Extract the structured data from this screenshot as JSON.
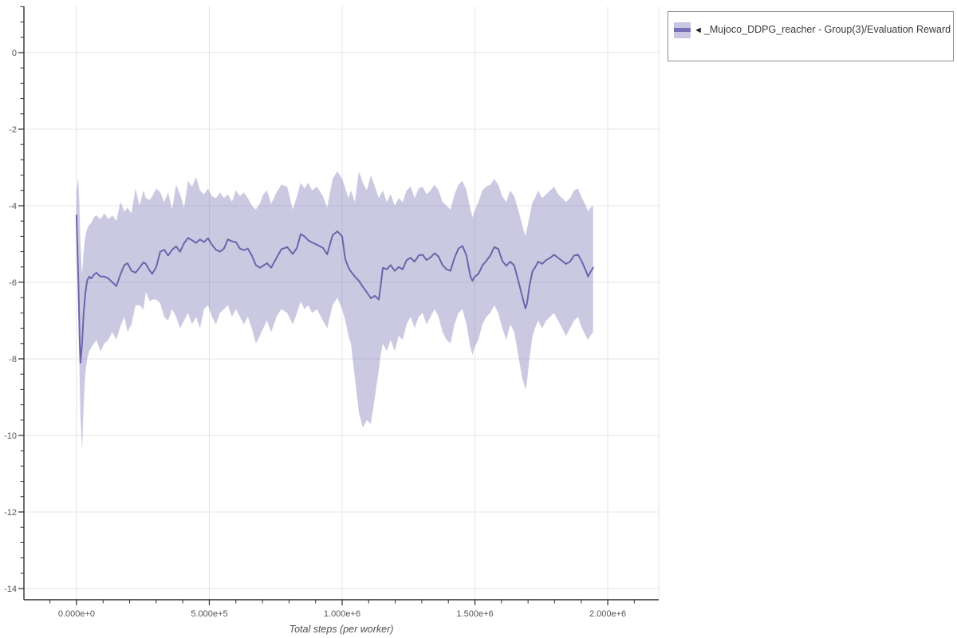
{
  "page": {
    "background": "#ffffff"
  },
  "legend": {
    "marker": "◄",
    "label": "_Mujoco_DDPG_reacher - Group(3)/Evaluation Reward",
    "border_color": "#8f8f8f",
    "text_color": "#3b3b3b",
    "swatch_band_color": "#c9c6e4",
    "swatch_line_color": "#7470b2",
    "position": "top-right"
  },
  "chart_data": {
    "type": "line",
    "title": "",
    "xlabel": "Total steps (per worker)",
    "ylabel": "",
    "grid": true,
    "legend_position": "top-right",
    "xlim": [
      -198000,
      2192000
    ],
    "ylim": [
      -14.292,
      1.208
    ],
    "x_tick_values": [
      0,
      500000,
      1000000,
      1500000,
      2000000
    ],
    "x_tick_labels": [
      "0.000e+0",
      "5.000e+5",
      "1.000e+6",
      "1.500e+6",
      "2.000e+6"
    ],
    "x_minor_step": 100000,
    "y_tick_values": [
      0,
      -2,
      -4,
      -6,
      -8,
      -10,
      -12,
      -14
    ],
    "y_tick_labels": [
      "0",
      "-2",
      "-4",
      "-6",
      "-8",
      "-10",
      "-12",
      "-14"
    ],
    "y_minor_step": 0.4,
    "colors": {
      "line": "#6a65ab",
      "band": "rgba(106,101,171,0.35)",
      "grid": "#e4e4e6",
      "spine": "#2f2f2f",
      "tick": "#2f2f2f",
      "tick_label": "#545454",
      "axis_title": "#4f4f4f"
    },
    "series": [
      {
        "name": "_Mujoco_DDPG_reacher - Group(3)/Evaluation Reward",
        "x": [
          0,
          7000,
          12000,
          15000,
          21000,
          27000,
          33000,
          40000,
          48000,
          55000,
          66000,
          75000,
          90000,
          105000,
          120000,
          135000,
          150000,
          165000,
          180000,
          192000,
          207000,
          222000,
          237000,
          252000,
          261000,
          276000,
          285000,
          300000,
          315000,
          330000,
          345000,
          360000,
          375000,
          390000,
          405000,
          420000,
          435000,
          450000,
          465000,
          480000,
          495000,
          510000,
          525000,
          540000,
          555000,
          570000,
          585000,
          600000,
          615000,
          630000,
          645000,
          660000,
          675000,
          690000,
          703000,
          717000,
          733000,
          753000,
          771000,
          793000,
          814000,
          830000,
          844000,
          858000,
          872000,
          887000,
          905000,
          928000,
          944000,
          964000,
          982000,
          1000000,
          1012000,
          1024000,
          1033000,
          1048000,
          1063000,
          1078000,
          1093000,
          1108000,
          1123000,
          1138000,
          1145000,
          1153000,
          1168000,
          1183000,
          1198000,
          1213000,
          1228000,
          1243000,
          1258000,
          1273000,
          1288000,
          1303000,
          1318000,
          1333000,
          1348000,
          1363000,
          1378000,
          1393000,
          1408000,
          1423000,
          1438000,
          1453000,
          1468000,
          1483000,
          1491000,
          1498000,
          1513000,
          1528000,
          1543000,
          1558000,
          1573000,
          1588000,
          1603000,
          1618000,
          1633000,
          1648000,
          1663000,
          1678000,
          1690000,
          1696000,
          1705000,
          1717000,
          1726000,
          1738000,
          1753000,
          1768000,
          1783000,
          1798000,
          1813000,
          1828000,
          1843000,
          1858000,
          1873000,
          1888000,
          1903000,
          1918000,
          1926000,
          1934000,
          1945000
        ],
        "mean": [
          -4.25,
          -6.0,
          -7.5,
          -8.1,
          -7.6,
          -6.8,
          -6.3,
          -5.95,
          -5.85,
          -5.9,
          -5.8,
          -5.75,
          -5.85,
          -5.85,
          -5.9,
          -6.0,
          -6.1,
          -5.8,
          -5.55,
          -5.5,
          -5.7,
          -5.75,
          -5.62,
          -5.48,
          -5.52,
          -5.7,
          -5.78,
          -5.6,
          -5.2,
          -5.15,
          -5.3,
          -5.15,
          -5.06,
          -5.2,
          -4.98,
          -4.84,
          -4.9,
          -4.97,
          -4.88,
          -4.95,
          -4.85,
          -5.02,
          -5.15,
          -5.2,
          -5.12,
          -4.88,
          -4.93,
          -4.95,
          -5.12,
          -5.16,
          -5.12,
          -5.3,
          -5.55,
          -5.62,
          -5.57,
          -5.5,
          -5.62,
          -5.36,
          -5.14,
          -5.08,
          -5.26,
          -5.1,
          -4.74,
          -4.8,
          -4.9,
          -4.96,
          -5.02,
          -5.1,
          -5.27,
          -4.77,
          -4.67,
          -4.8,
          -5.4,
          -5.62,
          -5.72,
          -5.85,
          -5.96,
          -6.12,
          -6.26,
          -6.42,
          -6.35,
          -6.45,
          -6.1,
          -5.62,
          -5.66,
          -5.55,
          -5.7,
          -5.6,
          -5.66,
          -5.42,
          -5.36,
          -5.46,
          -5.3,
          -5.28,
          -5.42,
          -5.35,
          -5.24,
          -5.33,
          -5.55,
          -5.66,
          -5.7,
          -5.36,
          -5.12,
          -5.05,
          -5.3,
          -5.85,
          -5.96,
          -5.86,
          -5.78,
          -5.56,
          -5.44,
          -5.3,
          -5.08,
          -5.13,
          -5.44,
          -5.57,
          -5.46,
          -5.56,
          -5.95,
          -6.36,
          -6.68,
          -6.56,
          -6.1,
          -5.7,
          -5.62,
          -5.46,
          -5.52,
          -5.42,
          -5.36,
          -5.28,
          -5.36,
          -5.44,
          -5.52,
          -5.46,
          -5.3,
          -5.28,
          -5.46,
          -5.7,
          -5.85,
          -5.74,
          -5.62
        ],
        "hi": [
          -3.6,
          -3.3,
          -4.2,
          -5.0,
          -5.8,
          -5.2,
          -4.8,
          -4.6,
          -4.5,
          -4.45,
          -4.3,
          -4.25,
          -4.35,
          -4.2,
          -4.35,
          -4.25,
          -4.4,
          -3.9,
          -4.15,
          -4.05,
          -4.2,
          -3.55,
          -4.0,
          -3.6,
          -3.8,
          -3.85,
          -3.75,
          -3.55,
          -3.65,
          -3.9,
          -3.65,
          -4.1,
          -3.45,
          -3.7,
          -4.05,
          -3.35,
          -3.5,
          -3.25,
          -3.6,
          -3.7,
          -3.55,
          -3.75,
          -3.8,
          -3.65,
          -3.8,
          -3.7,
          -3.9,
          -3.6,
          -3.75,
          -3.65,
          -3.8,
          -4.0,
          -4.1,
          -3.95,
          -3.7,
          -3.6,
          -3.95,
          -3.65,
          -3.45,
          -3.5,
          -4.1,
          -3.75,
          -3.4,
          -3.55,
          -3.4,
          -3.6,
          -3.5,
          -3.75,
          -4.05,
          -3.3,
          -3.1,
          -3.3,
          -3.55,
          -3.8,
          -3.6,
          -3.9,
          -3.1,
          -3.4,
          -3.6,
          -3.2,
          -3.5,
          -3.8,
          -3.7,
          -3.6,
          -3.9,
          -3.7,
          -4.0,
          -3.8,
          -3.9,
          -3.6,
          -3.5,
          -3.8,
          -3.55,
          -3.5,
          -3.7,
          -3.6,
          -3.45,
          -3.6,
          -3.9,
          -4.0,
          -4.1,
          -3.7,
          -3.45,
          -3.35,
          -3.6,
          -4.1,
          -4.3,
          -4.15,
          -3.9,
          -3.6,
          -3.5,
          -3.45,
          -3.3,
          -3.45,
          -3.75,
          -3.9,
          -3.6,
          -3.75,
          -4.1,
          -4.5,
          -4.8,
          -4.6,
          -4.3,
          -3.9,
          -3.8,
          -3.6,
          -3.8,
          -3.7,
          -3.6,
          -3.5,
          -3.7,
          -3.8,
          -3.9,
          -3.8,
          -3.6,
          -3.55,
          -3.8,
          -4.0,
          -4.15,
          -4.05,
          -4.0
        ],
        "lo": [
          -4.6,
          -6.8,
          -8.6,
          -9.5,
          -10.4,
          -9.2,
          -8.4,
          -8.0,
          -7.8,
          -7.7,
          -7.6,
          -7.5,
          -7.8,
          -7.6,
          -7.5,
          -7.3,
          -7.5,
          -7.15,
          -6.9,
          -7.3,
          -7.1,
          -6.6,
          -6.6,
          -6.7,
          -6.25,
          -6.5,
          -6.45,
          -6.45,
          -6.55,
          -6.9,
          -7.0,
          -6.7,
          -6.9,
          -7.2,
          -7.0,
          -6.8,
          -7.1,
          -6.9,
          -7.2,
          -6.7,
          -6.6,
          -6.9,
          -7.1,
          -6.8,
          -6.7,
          -6.6,
          -6.9,
          -6.7,
          -6.9,
          -7.1,
          -6.9,
          -7.2,
          -7.6,
          -7.4,
          -7.2,
          -7.0,
          -7.3,
          -6.9,
          -6.7,
          -6.8,
          -7.1,
          -6.8,
          -6.5,
          -6.7,
          -6.6,
          -6.8,
          -6.7,
          -7.0,
          -7.2,
          -6.6,
          -6.4,
          -6.7,
          -7.0,
          -7.4,
          -7.6,
          -8.5,
          -9.4,
          -9.8,
          -9.6,
          -9.7,
          -9.0,
          -8.3,
          -7.9,
          -7.6,
          -7.8,
          -7.5,
          -7.8,
          -7.4,
          -7.5,
          -7.1,
          -6.9,
          -7.2,
          -6.9,
          -6.8,
          -7.1,
          -6.9,
          -6.7,
          -6.9,
          -7.3,
          -7.5,
          -7.6,
          -7.1,
          -6.8,
          -6.7,
          -7.1,
          -7.7,
          -7.9,
          -7.7,
          -7.5,
          -7.1,
          -6.9,
          -6.8,
          -6.6,
          -6.8,
          -7.2,
          -7.5,
          -7.1,
          -7.3,
          -7.9,
          -8.5,
          -8.8,
          -8.6,
          -8.0,
          -7.4,
          -7.2,
          -7.0,
          -7.2,
          -7.0,
          -6.9,
          -6.8,
          -7.0,
          -7.2,
          -7.4,
          -7.2,
          -7.0,
          -6.9,
          -7.2,
          -7.4,
          -7.5,
          -7.4,
          -7.3
        ]
      }
    ]
  }
}
